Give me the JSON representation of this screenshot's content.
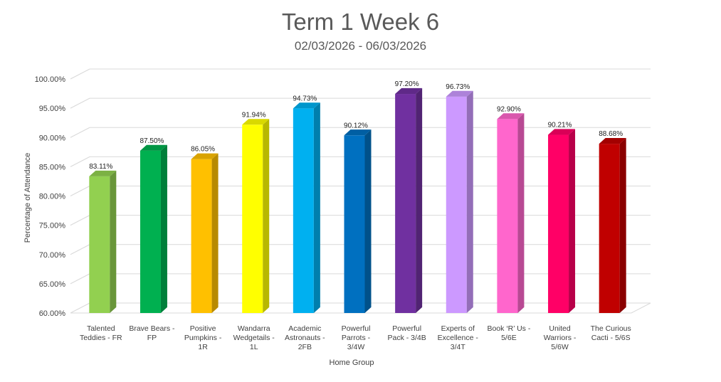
{
  "chart_data": {
    "type": "bar",
    "title": "Term 1 Week 6",
    "subtitle": "02/03/2026 - 06/03/2026",
    "xlabel": "Home Group",
    "ylabel": "Percentage of Attendance",
    "ylim": [
      60,
      100
    ],
    "y_ticks": [
      "60.00%",
      "65.00%",
      "70.00%",
      "75.00%",
      "80.00%",
      "85.00%",
      "90.00%",
      "95.00%",
      "100.00%"
    ],
    "grid": true,
    "legend": "none",
    "categories": [
      [
        "Talented",
        "Teddies - FR"
      ],
      [
        "Brave Bears -",
        "FP"
      ],
      [
        "Positive",
        "Pumpkins -",
        "1R"
      ],
      [
        "Wandarra",
        "Wedgetails -",
        "1L"
      ],
      [
        "Academic",
        "Astronauts -",
        "2FB"
      ],
      [
        "Powerful",
        "Parrots -",
        "3/4W"
      ],
      [
        "Powerful",
        "Pack - 3/4B"
      ],
      [
        "Experts of",
        "Excellence -",
        "3/4T"
      ],
      [
        "Book ‘R’ Us -",
        "5/6E"
      ],
      [
        "United",
        "Warriors -",
        "5/6W"
      ],
      [
        "The Curious",
        "Cacti - 5/6S"
      ]
    ],
    "values": [
      83.11,
      87.5,
      86.05,
      91.94,
      94.73,
      90.12,
      97.2,
      96.73,
      92.9,
      90.21,
      88.68
    ],
    "data_labels": [
      "83.11%",
      "87.50%",
      "86.05%",
      "91.94%",
      "94.73%",
      "90.12%",
      "97.20%",
      "96.73%",
      "92.90%",
      "90.21%",
      "88.68%"
    ],
    "colors": [
      "#92D050",
      "#00B050",
      "#FFC000",
      "#FFFF00",
      "#00B0F0",
      "#0070C0",
      "#7030A0",
      "#CC99FF",
      "#FF66CC",
      "#FF0066",
      "#C00000"
    ]
  }
}
